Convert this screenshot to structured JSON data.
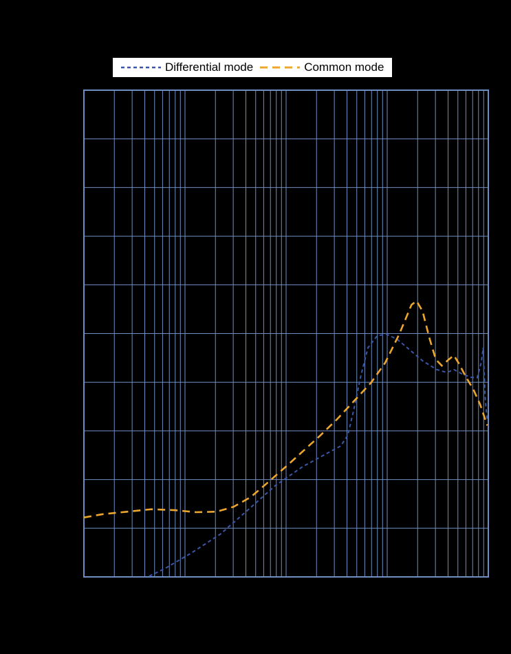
{
  "page": {
    "background": "#000000"
  },
  "legend": {
    "background": "#ffffff",
    "items": [
      {
        "label": "Differential mode",
        "color": "#3a57a8",
        "dash": "5,4"
      },
      {
        "label": "Common mode",
        "color": "#eda72e",
        "dash": "11,7"
      }
    ]
  },
  "chart_data": {
    "type": "line",
    "title": "",
    "xlabel": "",
    "ylabel": "",
    "x_axis": {
      "scale": "log",
      "decades": 4,
      "tick_labels_visible": false
    },
    "y_axis": {
      "scale": "linear",
      "divisions": 10,
      "tick_labels_visible": false
    },
    "grid": {
      "on": true,
      "color": "#6f8fc4",
      "border_width": 2,
      "line_width": 1
    },
    "legend_position": "top-center",
    "note": "Axis tick labels and title are not visible in the image (black on black); x in decade units 0-4 (log axis), y in grid divisions 0-10 from bottom.",
    "series": [
      {
        "name": "Differential mode",
        "color": "#3a57a8",
        "style": "dashed",
        "dash": "5,4",
        "width": 2,
        "points": [
          [
            0.29,
            -0.11
          ],
          [
            0.53,
            -0.1
          ],
          [
            0.8,
            0.17
          ],
          [
            1.07,
            0.5
          ],
          [
            1.35,
            0.88
          ],
          [
            1.62,
            1.37
          ],
          [
            1.89,
            1.87
          ],
          [
            2.16,
            2.26
          ],
          [
            2.37,
            2.5
          ],
          [
            2.54,
            2.69
          ],
          [
            2.61,
            2.91
          ],
          [
            2.67,
            3.44
          ],
          [
            2.74,
            4.14
          ],
          [
            2.81,
            4.71
          ],
          [
            2.9,
            4.95
          ],
          [
            2.99,
            4.99
          ],
          [
            3.1,
            4.88
          ],
          [
            3.22,
            4.67
          ],
          [
            3.35,
            4.44
          ],
          [
            3.49,
            4.26
          ],
          [
            3.59,
            4.2
          ],
          [
            3.66,
            4.26
          ],
          [
            3.74,
            4.17
          ],
          [
            3.83,
            4.1
          ],
          [
            3.89,
            4.09
          ],
          [
            3.93,
            4.4
          ],
          [
            3.95,
            4.71
          ],
          [
            3.96,
            4.14
          ],
          [
            3.97,
            3.65
          ],
          [
            3.99,
            3.2
          ]
        ]
      },
      {
        "name": "Common mode",
        "color": "#eda72e",
        "style": "dashed",
        "dash": "11,7",
        "width": 2.6,
        "points": [
          [
            0.0,
            1.22
          ],
          [
            0.19,
            1.29
          ],
          [
            0.43,
            1.34
          ],
          [
            0.67,
            1.39
          ],
          [
            0.9,
            1.37
          ],
          [
            1.11,
            1.33
          ],
          [
            1.31,
            1.34
          ],
          [
            1.48,
            1.44
          ],
          [
            1.65,
            1.64
          ],
          [
            1.82,
            1.94
          ],
          [
            1.99,
            2.25
          ],
          [
            2.16,
            2.57
          ],
          [
            2.33,
            2.89
          ],
          [
            2.5,
            3.23
          ],
          [
            2.67,
            3.61
          ],
          [
            2.84,
            3.99
          ],
          [
            2.98,
            4.4
          ],
          [
            3.12,
            4.99
          ],
          [
            3.24,
            5.59
          ],
          [
            3.29,
            5.67
          ],
          [
            3.35,
            5.46
          ],
          [
            3.42,
            4.89
          ],
          [
            3.48,
            4.47
          ],
          [
            3.54,
            4.34
          ],
          [
            3.61,
            4.47
          ],
          [
            3.66,
            4.55
          ],
          [
            3.71,
            4.38
          ],
          [
            3.78,
            4.1
          ],
          [
            3.85,
            3.86
          ],
          [
            3.92,
            3.54
          ],
          [
            3.97,
            3.23
          ],
          [
            3.99,
            3.11
          ]
        ]
      }
    ]
  }
}
